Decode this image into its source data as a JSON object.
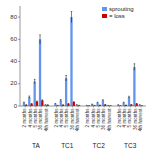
{
  "chart_data": {
    "type": "bar",
    "categories": [
      "2 months",
      "4 months",
      "5 months",
      "36 months",
      "4th harvest",
      "2 months",
      "4 months",
      "5 months",
      "36 months",
      "4th harvest",
      "2 months",
      "4 months",
      "5 months",
      "36 months",
      "4th harvest",
      "2 months",
      "4 months",
      "5 months",
      "36 months",
      "4th harvest"
    ],
    "groups": [
      "TA",
      "TC1",
      "TC2",
      "TC3"
    ],
    "series": [
      {
        "name": "sprouting",
        "color": "#6495ED",
        "values": [
          3.0,
          8.0,
          22.0,
          60.0,
          1.0,
          2.0,
          5.0,
          25.0,
          80.0,
          1.0,
          0.5,
          1.5,
          3.0,
          5.0,
          0.5,
          1.0,
          3.0,
          8.0,
          35.0,
          1.0
        ],
        "errors": [
          0.5,
          1.0,
          2.0,
          4.0,
          0.2,
          0.3,
          0.8,
          2.5,
          5.0,
          0.2,
          0.1,
          0.2,
          0.4,
          0.6,
          0.1,
          0.2,
          0.4,
          0.8,
          3.0,
          0.2
        ]
      },
      {
        "name": "= loss",
        "color": "#CC0000",
        "values": [
          1.0,
          2.0,
          4.0,
          5.0,
          1.0,
          0.5,
          1.0,
          2.0,
          3.5,
          0.5,
          0.3,
          0.5,
          0.8,
          1.2,
          0.3,
          0.3,
          0.8,
          1.2,
          2.0,
          0.3
        ],
        "errors": [
          0.15,
          0.2,
          0.5,
          0.5,
          0.1,
          0.1,
          0.15,
          0.3,
          0.4,
          0.1,
          0.05,
          0.08,
          0.1,
          0.15,
          0.05,
          0.05,
          0.1,
          0.15,
          0.25,
          0.05
        ]
      }
    ],
    "ylim": [
      0,
      90
    ],
    "yticks": [
      0,
      20,
      40,
      60,
      80
    ],
    "legend": "upper right"
  }
}
